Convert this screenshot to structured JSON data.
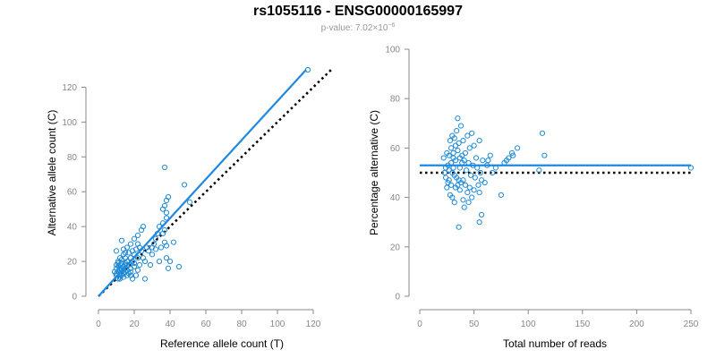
{
  "title": "rs1055116 - ENSG00000165997",
  "subtitle": {
    "prefix": "p-value: 7.02×10",
    "exponent": "−6"
  },
  "chart_data": [
    {
      "type": "scatter",
      "xlabel": "Reference allele count (T)",
      "ylabel": "Alternative allele count (C)",
      "xlim": [
        0,
        130
      ],
      "ylim": [
        0,
        130
      ],
      "xticks": [
        0,
        20,
        40,
        60,
        80,
        100,
        120
      ],
      "yticks": [
        0,
        20,
        40,
        60,
        80,
        100,
        120
      ],
      "point_color": "#1f8ad6",
      "reference_line": {
        "style": "dotted",
        "color": "#000000",
        "from": [
          0,
          0
        ],
        "to": [
          130,
          130
        ]
      },
      "fit_line": {
        "color": "#1e88e5",
        "from": [
          0,
          0
        ],
        "to": [
          116,
          130
        ]
      },
      "points": [
        [
          10,
          12
        ],
        [
          11,
          14
        ],
        [
          12,
          15
        ],
        [
          13,
          16
        ],
        [
          10,
          18
        ],
        [
          12,
          18
        ],
        [
          14,
          17
        ],
        [
          11,
          20
        ],
        [
          13,
          21
        ],
        [
          15,
          19
        ],
        [
          12,
          10
        ],
        [
          14,
          11
        ],
        [
          16,
          12
        ],
        [
          10,
          13
        ],
        [
          11,
          17
        ],
        [
          13,
          19
        ],
        [
          15,
          22
        ],
        [
          12,
          22
        ],
        [
          14,
          24
        ],
        [
          16,
          20
        ],
        [
          17,
          18
        ],
        [
          18,
          16
        ],
        [
          9,
          14
        ],
        [
          10,
          16
        ],
        [
          12,
          13
        ],
        [
          13,
          12
        ],
        [
          15,
          14
        ],
        [
          16,
          15
        ],
        [
          17,
          13
        ],
        [
          18,
          12
        ],
        [
          11,
          10
        ],
        [
          12,
          11
        ],
        [
          14,
          13
        ],
        [
          15,
          16
        ],
        [
          16,
          18
        ],
        [
          13,
          15
        ],
        [
          14,
          15
        ],
        [
          12,
          16
        ],
        [
          11,
          19
        ],
        [
          15,
          25
        ],
        [
          10,
          26
        ],
        [
          14,
          27
        ],
        [
          16,
          28
        ],
        [
          17,
          25
        ],
        [
          18,
          22
        ],
        [
          19,
          20
        ],
        [
          20,
          24
        ],
        [
          21,
          27
        ],
        [
          22,
          30
        ],
        [
          20,
          33
        ],
        [
          22,
          35
        ],
        [
          23,
          28
        ],
        [
          24,
          38
        ],
        [
          18,
          30
        ],
        [
          19,
          26
        ],
        [
          13,
          32
        ],
        [
          25,
          40
        ],
        [
          20,
          17
        ],
        [
          22,
          15
        ],
        [
          21,
          12
        ],
        [
          25,
          22
        ],
        [
          27,
          28
        ],
        [
          28,
          26
        ],
        [
          30,
          24
        ],
        [
          31,
          30
        ],
        [
          32,
          27
        ],
        [
          34,
          20
        ],
        [
          35,
          28
        ],
        [
          36,
          36
        ],
        [
          37,
          38
        ],
        [
          38,
          45
        ],
        [
          36,
          50
        ],
        [
          37,
          52
        ],
        [
          38,
          48
        ],
        [
          39,
          57
        ],
        [
          38,
          55
        ],
        [
          36,
          42
        ],
        [
          33,
          36
        ],
        [
          34,
          40
        ],
        [
          37,
          31
        ],
        [
          38,
          29
        ],
        [
          38,
          22
        ],
        [
          39,
          16
        ],
        [
          40,
          20
        ],
        [
          42,
          31
        ],
        [
          37,
          74
        ],
        [
          45,
          17
        ],
        [
          48,
          64
        ],
        [
          51,
          54
        ],
        [
          26,
          10
        ],
        [
          29,
          18
        ],
        [
          32,
          33
        ],
        [
          30,
          28
        ],
        [
          26,
          20
        ],
        [
          24,
          26
        ],
        [
          22,
          22
        ],
        [
          23,
          18
        ],
        [
          18,
          14
        ],
        [
          19,
          10
        ],
        [
          20,
          19
        ],
        [
          117,
          130
        ]
      ]
    },
    {
      "type": "scatter",
      "xlabel": "Total number of reads",
      "ylabel": "Percentage alternative (C)",
      "xlim": [
        0,
        250
      ],
      "ylim": [
        0,
        100
      ],
      "xticks": [
        0,
        50,
        100,
        150,
        200,
        250
      ],
      "yticks": [
        0,
        20,
        40,
        60,
        80,
        100
      ],
      "point_color": "#1f8ad6",
      "reference_line": {
        "style": "dotted",
        "color": "#000000",
        "y": 50
      },
      "fit_line": {
        "color": "#1e88e5",
        "y": 53
      },
      "points": [
        [
          35,
          72
        ],
        [
          38,
          69
        ],
        [
          34,
          67
        ],
        [
          30,
          65
        ],
        [
          28,
          63
        ],
        [
          32,
          64
        ],
        [
          36,
          62
        ],
        [
          40,
          63
        ],
        [
          44,
          65
        ],
        [
          48,
          66
        ],
        [
          55,
          63
        ],
        [
          50,
          61
        ],
        [
          46,
          60
        ],
        [
          42,
          58
        ],
        [
          39,
          57
        ],
        [
          37,
          56
        ],
        [
          33,
          55
        ],
        [
          29,
          54
        ],
        [
          26,
          53
        ],
        [
          24,
          52
        ],
        [
          22,
          56
        ],
        [
          25,
          58
        ],
        [
          27,
          57
        ],
        [
          31,
          58
        ],
        [
          35,
          59
        ],
        [
          41,
          55
        ],
        [
          45,
          54
        ],
        [
          49,
          53
        ],
        [
          53,
          52
        ],
        [
          58,
          55
        ],
        [
          62,
          53
        ],
        [
          65,
          57
        ],
        [
          30,
          50
        ],
        [
          32,
          49
        ],
        [
          34,
          48
        ],
        [
          36,
          47
        ],
        [
          38,
          46
        ],
        [
          42,
          45
        ],
        [
          46,
          44
        ],
        [
          50,
          43
        ],
        [
          54,
          45
        ],
        [
          55,
          42
        ],
        [
          48,
          40
        ],
        [
          44,
          42
        ],
        [
          40,
          39
        ],
        [
          37,
          43
        ],
        [
          33,
          44
        ],
        [
          29,
          45
        ],
        [
          26,
          46
        ],
        [
          24,
          48
        ],
        [
          23,
          50
        ],
        [
          27,
          51
        ],
        [
          31,
          52
        ],
        [
          37,
          52
        ],
        [
          43,
          51
        ],
        [
          47,
          49
        ],
        [
          51,
          48
        ],
        [
          57,
          47
        ],
        [
          56,
          50
        ],
        [
          52,
          56
        ],
        [
          28,
          41
        ],
        [
          30,
          40
        ],
        [
          32,
          38
        ],
        [
          45,
          38
        ],
        [
          41,
          36
        ],
        [
          36,
          28
        ],
        [
          55,
          30
        ],
        [
          57,
          33
        ],
        [
          40,
          47
        ],
        [
          35,
          45
        ],
        [
          75,
          41
        ],
        [
          78,
          54
        ],
        [
          82,
          56
        ],
        [
          85,
          58
        ],
        [
          90,
          60
        ],
        [
          86,
          57
        ],
        [
          80,
          55
        ],
        [
          113,
          66
        ],
        [
          115,
          57
        ],
        [
          110,
          51
        ],
        [
          63,
          55
        ],
        [
          70,
          52
        ],
        [
          67,
          50
        ],
        [
          60,
          46
        ],
        [
          25,
          44
        ],
        [
          27,
          47
        ],
        [
          33,
          61
        ],
        [
          29,
          60
        ],
        [
          31,
          56
        ],
        [
          39,
          54
        ],
        [
          250,
          52
        ]
      ]
    }
  ]
}
